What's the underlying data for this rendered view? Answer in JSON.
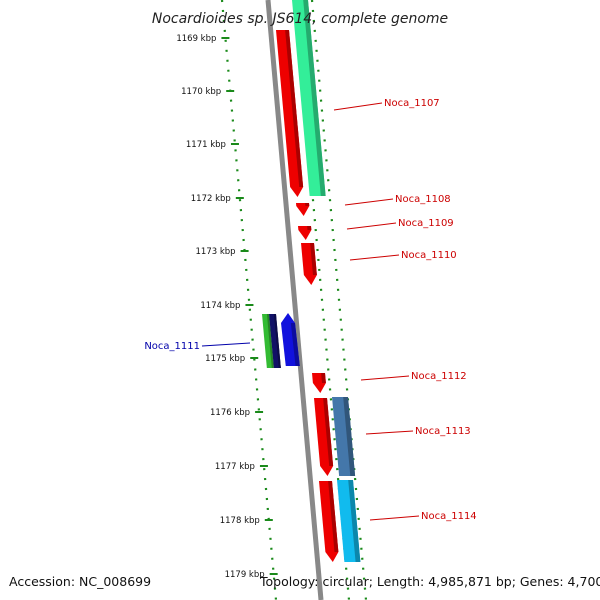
{
  "title": "Nocardioides sp. JS614, complete genome",
  "footer": {
    "accession": "Accession: NC_008699",
    "summary": "Topology: circular; Length: 4,985,871 bp; Genes: 4,700"
  },
  "colors": {
    "scale_dots": "#1a8a1a",
    "backbone": "#888888",
    "label_forward": "#cc0000",
    "label_reverse": "#0000aa"
  },
  "scale_ticks": [
    "1169 kbp",
    "1170 kbp",
    "1171 kbp",
    "1172 kbp",
    "1173 kbp",
    "1174 kbp",
    "1175 kbp",
    "1176 kbp",
    "1177 kbp",
    "1178 kbp",
    "1179 kbp"
  ],
  "gene_labels": [
    {
      "text": "Noca_1107",
      "strand": "forward"
    },
    {
      "text": "Noca_1108",
      "strand": "forward"
    },
    {
      "text": "Noca_1109",
      "strand": "forward"
    },
    {
      "text": "Noca_1110",
      "strand": "forward"
    },
    {
      "text": "Noca_1111",
      "strand": "reverse"
    },
    {
      "text": "Noca_1112",
      "strand": "forward"
    },
    {
      "text": "Noca_1113",
      "strand": "forward"
    },
    {
      "text": "Noca_1114",
      "strand": "forward"
    }
  ],
  "features": [
    {
      "name": "gene-1107",
      "color": "#ee0000"
    },
    {
      "name": "cds-1107",
      "color": "#33ee99"
    },
    {
      "name": "gene-1108",
      "color": "#ee0000"
    },
    {
      "name": "gene-1109",
      "color": "#ee0000"
    },
    {
      "name": "gene-1110",
      "color": "#ee0000"
    },
    {
      "name": "cds-1111-a",
      "color": "#33bb33"
    },
    {
      "name": "cds-1111-b",
      "color": "#111166"
    },
    {
      "name": "gene-1111",
      "color": "#1111dd"
    },
    {
      "name": "gene-1112",
      "color": "#ee0000"
    },
    {
      "name": "gene-1113",
      "color": "#ee0000"
    },
    {
      "name": "cds-1113",
      "color": "#4477aa"
    },
    {
      "name": "gene-1114",
      "color": "#ee0000"
    },
    {
      "name": "cds-1114",
      "color": "#11bbee"
    }
  ]
}
